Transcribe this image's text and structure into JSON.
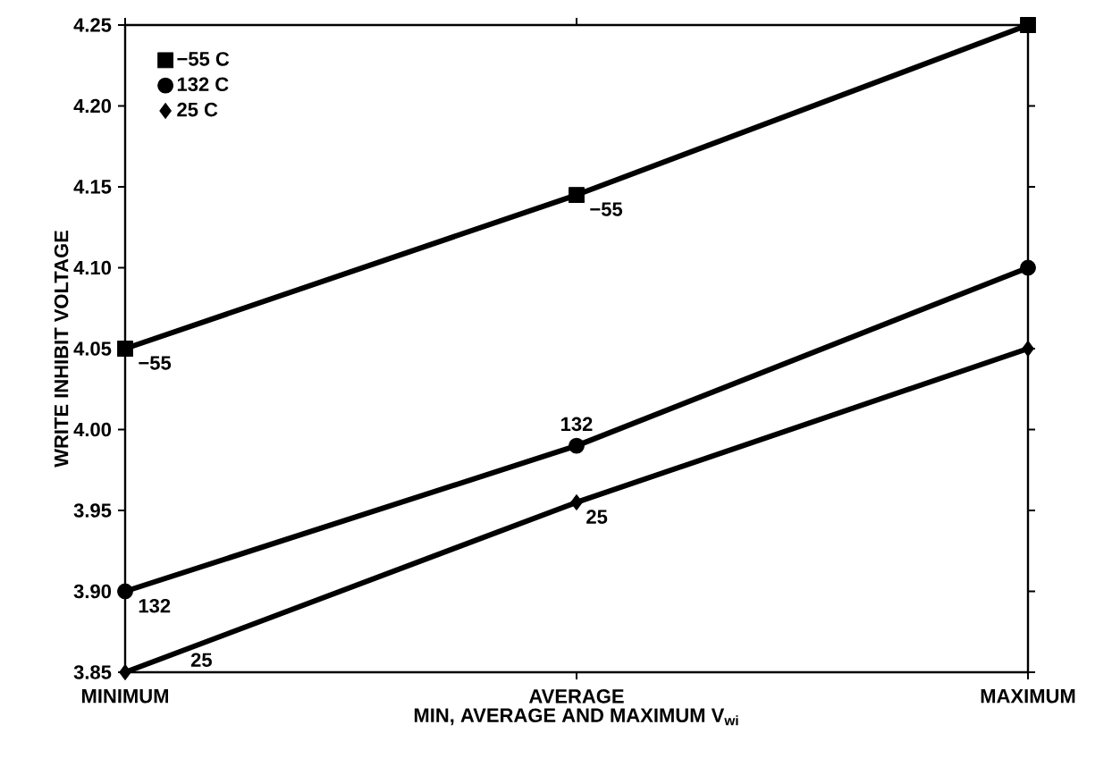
{
  "chart_data": {
    "type": "line",
    "xlabel": "MIN, AVERAGE AND MAXIMUM V$_{wi}$",
    "ylabel": "WRITE INHIBIT VOLTAGE",
    "categories": [
      "MINIMUM",
      "AVERAGE",
      "MAXIMUM"
    ],
    "series": [
      {
        "name": "−55 C",
        "color": "#000000",
        "marker": "square",
        "values": [
          4.05,
          4.145,
          4.25
        ]
      },
      {
        "name": "132 C",
        "color": "#000000",
        "marker": "circle",
        "values": [
          3.9,
          3.99,
          4.1
        ]
      },
      {
        "name": "25 C",
        "color": "#000000",
        "marker": "diamond",
        "values": [
          3.85,
          3.955,
          4.05
        ]
      }
    ],
    "ylim": [
      3.85,
      4.25
    ],
    "yticks": [
      {
        "value": 3.85,
        "label": "3.85"
      },
      {
        "value": 3.9,
        "label": "3.90"
      },
      {
        "value": 3.95,
        "label": "3.95"
      },
      {
        "value": 4.0,
        "label": "4.00"
      },
      {
        "value": 4.05,
        "label": "4.05"
      },
      {
        "value": 4.1,
        "label": "4.10"
      },
      {
        "value": 4.15,
        "label": "4.15"
      },
      {
        "value": 4.2,
        "label": "4.20"
      },
      {
        "value": 4.25,
        "label": "4.25"
      }
    ],
    "annotations": [
      {
        "text": "−55",
        "x": "MINIMUM",
        "y": 4.05
      },
      {
        "text": "−55",
        "x": "AVERAGE",
        "y": 4.145
      },
      {
        "text": "132",
        "x": "MINIMUM",
        "y": 3.9
      },
      {
        "text": "132",
        "x": "AVERAGE",
        "y": 3.99
      },
      "25",
      {
        "text": "25",
        "x": "AVERAGE",
        "y": 3.955
      }
    ],
    "grid": false,
    "legend": "top left",
    "line_style": "solid"
  }
}
